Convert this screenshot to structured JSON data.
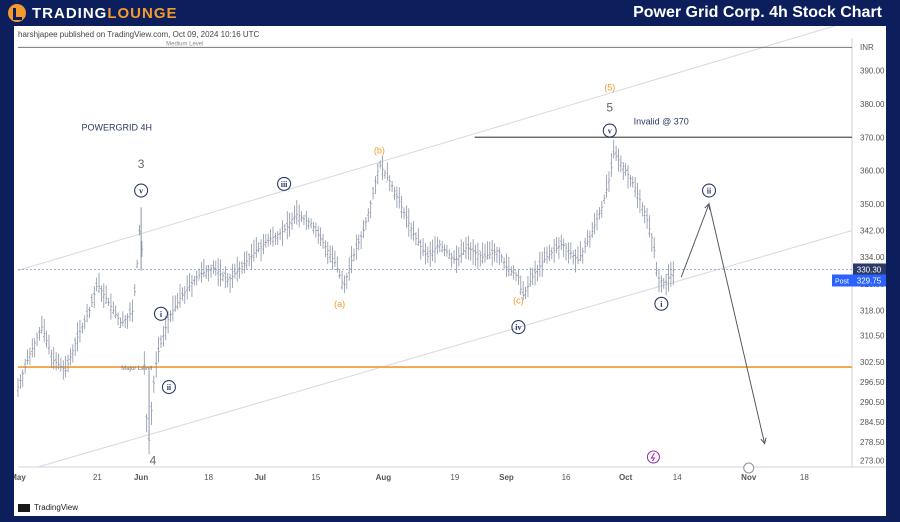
{
  "header": {
    "brand_main": "TRADING",
    "brand_accent": "LOUNGE",
    "title": "Power Grid Corp. 4h Stock Chart"
  },
  "publisher": "harshjapee published on TradingView.com, Oct 09, 2024 10:16 UTC",
  "footer_brand": "TradingView",
  "chart_data": {
    "type": "candlestick",
    "symbol_label": "POWERGRID 4H",
    "currency": "INR",
    "ylim": [
      271,
      398
    ],
    "y_ticks": [
      390.0,
      380.0,
      370.0,
      360.0,
      350.0,
      342.0,
      334.0,
      326.0,
      318.0,
      310.5,
      302.5,
      296.5,
      290.5,
      284.5,
      278.5,
      273.0
    ],
    "x_ticks": [
      "May",
      "21",
      "Jun",
      "18",
      "Jul",
      "15",
      "Aug",
      "19",
      "Sep",
      "16",
      "Oct",
      "14",
      "Nov",
      "18"
    ],
    "x_tick_days": [
      0,
      20,
      31,
      48,
      61,
      75,
      92,
      110,
      123,
      138,
      153,
      166,
      184,
      198
    ],
    "x_range_days": [
      0,
      210
    ],
    "last_price": "330.30",
    "post_label": "Post",
    "post_price": "329.75",
    "price_points": [
      [
        0,
        295
      ],
      [
        3,
        305
      ],
      [
        6,
        313
      ],
      [
        9,
        303
      ],
      [
        12,
        300
      ],
      [
        15,
        310
      ],
      [
        18,
        318
      ],
      [
        20,
        326
      ],
      [
        23,
        320
      ],
      [
        26,
        314
      ],
      [
        29,
        318
      ],
      [
        30,
        332
      ],
      [
        31,
        348
      ],
      [
        32,
        290
      ],
      [
        33,
        279
      ],
      [
        34,
        294
      ],
      [
        35,
        304
      ],
      [
        38,
        316
      ],
      [
        41,
        322
      ],
      [
        45,
        328
      ],
      [
        49,
        331
      ],
      [
        53,
        327
      ],
      [
        57,
        332
      ],
      [
        60,
        336
      ],
      [
        63,
        339
      ],
      [
        67,
        342
      ],
      [
        70,
        347
      ],
      [
        74,
        344
      ],
      [
        77,
        338
      ],
      [
        80,
        332
      ],
      [
        82,
        325
      ],
      [
        84,
        333
      ],
      [
        87,
        342
      ],
      [
        89,
        351
      ],
      [
        91,
        362
      ],
      [
        94,
        356
      ],
      [
        97,
        348
      ],
      [
        100,
        340
      ],
      [
        103,
        334
      ],
      [
        106,
        338
      ],
      [
        110,
        333
      ],
      [
        113,
        337
      ],
      [
        117,
        334
      ],
      [
        121,
        336
      ],
      [
        123,
        331
      ],
      [
        126,
        328
      ],
      [
        127,
        322
      ],
      [
        130,
        329
      ],
      [
        133,
        334
      ],
      [
        137,
        338
      ],
      [
        141,
        333
      ],
      [
        144,
        340
      ],
      [
        147,
        349
      ],
      [
        149,
        358
      ],
      [
        150,
        365
      ],
      [
        152,
        362
      ],
      [
        155,
        356
      ],
      [
        158,
        347
      ],
      [
        160,
        338
      ],
      [
        161,
        328
      ],
      [
        163,
        326
      ],
      [
        165,
        330
      ]
    ],
    "medium_level": {
      "value": 397,
      "label": "Medium Level"
    },
    "major_level": {
      "value": 301,
      "label": "Major Level",
      "color": "#f29a2e"
    },
    "invalid_level": {
      "value": 370,
      "label": "Invalid @ 370",
      "from_day": 115,
      "to_day": 210
    },
    "wave_labels": [
      {
        "text": "3",
        "day": 31,
        "price": 362,
        "kind": "plain"
      },
      {
        "text": "v",
        "day": 31,
        "price": 354,
        "kind": "circle"
      },
      {
        "text": "i",
        "day": 36,
        "price": 317,
        "kind": "circle"
      },
      {
        "text": "ii",
        "day": 38,
        "price": 295,
        "kind": "circle"
      },
      {
        "text": "4",
        "day": 34,
        "price": 273,
        "kind": "plain"
      },
      {
        "text": "iii",
        "day": 67,
        "price": 356,
        "kind": "circle"
      },
      {
        "text": "(a)",
        "day": 81,
        "price": 320,
        "kind": "orange"
      },
      {
        "text": "(b)",
        "day": 91,
        "price": 366,
        "kind": "orange"
      },
      {
        "text": "(c)",
        "day": 126,
        "price": 321,
        "kind": "orange"
      },
      {
        "text": "iv",
        "day": 126,
        "price": 313,
        "kind": "circle"
      },
      {
        "text": "(5)",
        "day": 149,
        "price": 385,
        "kind": "orange"
      },
      {
        "text": "5",
        "day": 149,
        "price": 379,
        "kind": "plain"
      },
      {
        "text": "v",
        "day": 149,
        "price": 372,
        "kind": "circle"
      },
      {
        "text": "i",
        "day": 162,
        "price": 320,
        "kind": "circle"
      },
      {
        "text": "ii",
        "day": 174,
        "price": 354,
        "kind": "circle"
      }
    ],
    "projection": [
      [
        167,
        328
      ],
      [
        174,
        350
      ],
      [
        188,
        278
      ]
    ],
    "channel_upper": [
      [
        0,
        330
      ],
      [
        210,
        405
      ]
    ],
    "channel_lower": [
      [
        5,
        271
      ],
      [
        210,
        342
      ]
    ],
    "colors": {
      "bar": "#8a92a6",
      "label": "#2b3a67",
      "orange": "#f29a2e",
      "last_price_bg": "#2b3a67",
      "post_bg": "#2962ff",
      "event": "#9c27b0"
    }
  }
}
